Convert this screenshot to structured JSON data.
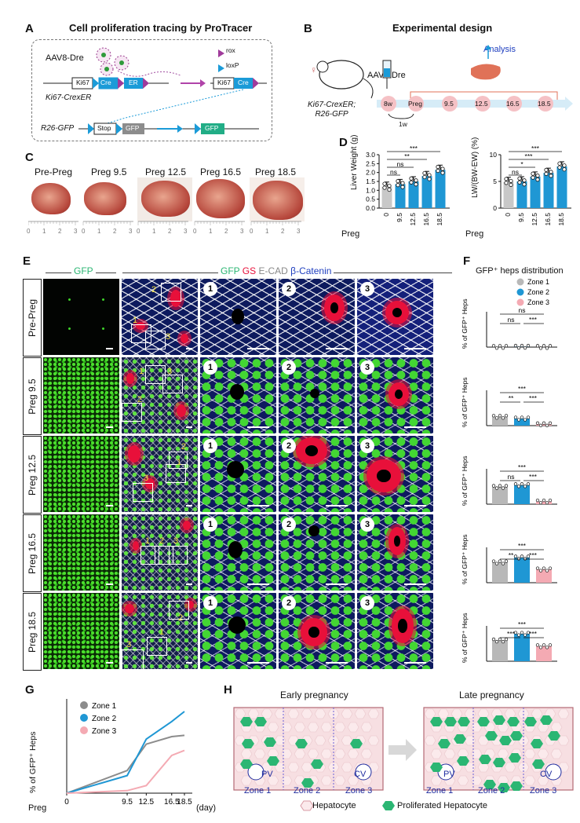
{
  "panelA": {
    "label": "A",
    "title": "Cell proliferation tracing by ProTracer",
    "aav": "AAV8-Dre",
    "legend_rox": "rox",
    "legend_loxp": "loxP",
    "ki67": "Ki67",
    "cre": "Cre",
    "er": "ER",
    "construct1_name": "Ki67-CrexER",
    "construct2_name": "R26-GFP",
    "stop": "Stop",
    "gfp": "GFP"
  },
  "panelB": {
    "label": "B",
    "title": "Experimental design",
    "aav": "AAV8-Dre",
    "analysis": "Analysis",
    "mouse_line1": "Ki67-CrexER;",
    "mouse_line2": "R26-GFP",
    "timepoints": [
      "8w",
      "Preg",
      "9.5",
      "12.5",
      "16.5",
      "18.5"
    ],
    "interval": "1w"
  },
  "panelC": {
    "label": "C",
    "samples": [
      "Pre-Preg",
      "Preg 9.5",
      "Preg 12.5",
      "Preg 16.5",
      "Preg 18.5"
    ],
    "ruler_ticks": [
      "0",
      "1",
      "2",
      "3"
    ]
  },
  "panelD": {
    "label": "D",
    "x_title": "Preg",
    "categories": [
      "0",
      "9.5",
      "12.5",
      "16.5",
      "18.5"
    ],
    "left_ylabel": "Liver Weight (g)",
    "left_ticks": [
      "0.0",
      "0.5",
      "1.0",
      "1.5",
      "2.0",
      "2.5",
      "3.0"
    ],
    "left_sig": [
      "***",
      "**",
      "ns",
      "ns"
    ],
    "right_ylabel": "LW/(BW-EW) (%)",
    "right_ticks": [
      "0",
      "5",
      "10"
    ],
    "right_sig": [
      "***",
      "***",
      "*",
      "ns"
    ]
  },
  "panelE": {
    "label": "E",
    "header_gfp": "GFP",
    "header_merge_gfp": "GFP",
    "header_merge_gs": "GS",
    "header_merge_ecad": "E-CAD",
    "header_merge_bcat": "β-Catenin",
    "rows": [
      "Pre-Preg",
      "Preg 9.5",
      "Preg 12.5",
      "Preg 16.5",
      "Preg 18.5"
    ],
    "zoom_labels": [
      "1",
      "2",
      "3"
    ]
  },
  "panelF": {
    "label": "F",
    "title": "GFP⁺ heps distribution",
    "ylabel": "% of GFP⁺ Heps",
    "legend": [
      "Zone 1",
      "Zone 2",
      "Zone 3"
    ],
    "sig_rows": [
      [
        "ns",
        "ns",
        "***"
      ],
      [
        "***",
        "**",
        "***"
      ],
      [
        "***",
        "ns",
        "***"
      ],
      [
        "***",
        "**",
        "***"
      ],
      [
        "***",
        "***",
        "***"
      ]
    ]
  },
  "panelG": {
    "label": "G",
    "ylabel": "% of GFP⁺ Heps",
    "x_title": "Preg",
    "x_unit": "(day)",
    "legend": [
      "Zone 1",
      "Zone 2",
      "Zone 3"
    ]
  },
  "panelH": {
    "label": "H",
    "early": "Early pregnancy",
    "late": "Late pregnancy",
    "pv": "PV",
    "cv": "CV",
    "zones": [
      "Zone 1",
      "Zone 2",
      "Zone 3"
    ],
    "legend_hep": "Hepatocyte",
    "legend_prolif": "Proliferated Hepatocyte"
  },
  "colors": {
    "zone1": "#b8b8b8",
    "zone2": "#1f97d4",
    "zone3": "#f4aab3",
    "bar_blue": "#1f97d4",
    "gfp_green": "#2bb673",
    "gs_red": "#e8103a",
    "bcat_blue": "#1f3fbf"
  },
  "chart_data": [
    {
      "type": "bar",
      "title": "",
      "xlabel": "Preg",
      "ylabel": "Liver Weight (g)",
      "categories": [
        "0",
        "9.5",
        "12.5",
        "16.5",
        "18.5"
      ],
      "values": [
        1.2,
        1.35,
        1.5,
        1.8,
        2.15
      ],
      "ylim": [
        0,
        3.0
      ]
    },
    {
      "type": "bar",
      "title": "",
      "xlabel": "Preg",
      "ylabel": "LW/(BW-EW) (%)",
      "categories": [
        "0",
        "9.5",
        "12.5",
        "16.5",
        "18.5"
      ],
      "values": [
        4.9,
        5.0,
        5.9,
        6.6,
        7.8
      ],
      "ylim": [
        0,
        10
      ]
    },
    {
      "type": "bar",
      "title": "",
      "ylabel": "% of GFP⁺ Heps",
      "categories": [
        "Zone 1",
        "Zone 2",
        "Zone 3"
      ],
      "groups": [
        {
          "name": "Pre-Preg",
          "values": [
            0.5,
            0.8,
            0.3
          ]
        },
        {
          "name": "Preg 9.5",
          "values": [
            20,
            16,
            3
          ]
        },
        {
          "name": "Preg 12.5",
          "values": [
            39,
            43,
            6
          ]
        },
        {
          "name": "Preg 16.5",
          "values": [
            46,
            57,
            30
          ]
        },
        {
          "name": "Preg 18.5",
          "values": [
            47,
            62,
            34
          ]
        }
      ]
    },
    {
      "type": "line",
      "title": "",
      "xlabel": "Preg",
      "ylabel": "% of GFP⁺ Heps",
      "x": [
        0,
        9.5,
        12.5,
        16.5,
        18.5
      ],
      "x_tick_labels": [
        "0",
        "9.5",
        "12.5",
        "16.5",
        "18.5"
      ],
      "series": [
        {
          "name": "Zone 1",
          "values": [
            0,
            18,
            39,
            45,
            46
          ]
        },
        {
          "name": "Zone 2",
          "values": [
            0,
            14,
            43,
            57,
            65
          ]
        },
        {
          "name": "Zone 3",
          "values": [
            0,
            2,
            6,
            30,
            34
          ]
        }
      ],
      "ylim": [
        0,
        75
      ]
    }
  ]
}
